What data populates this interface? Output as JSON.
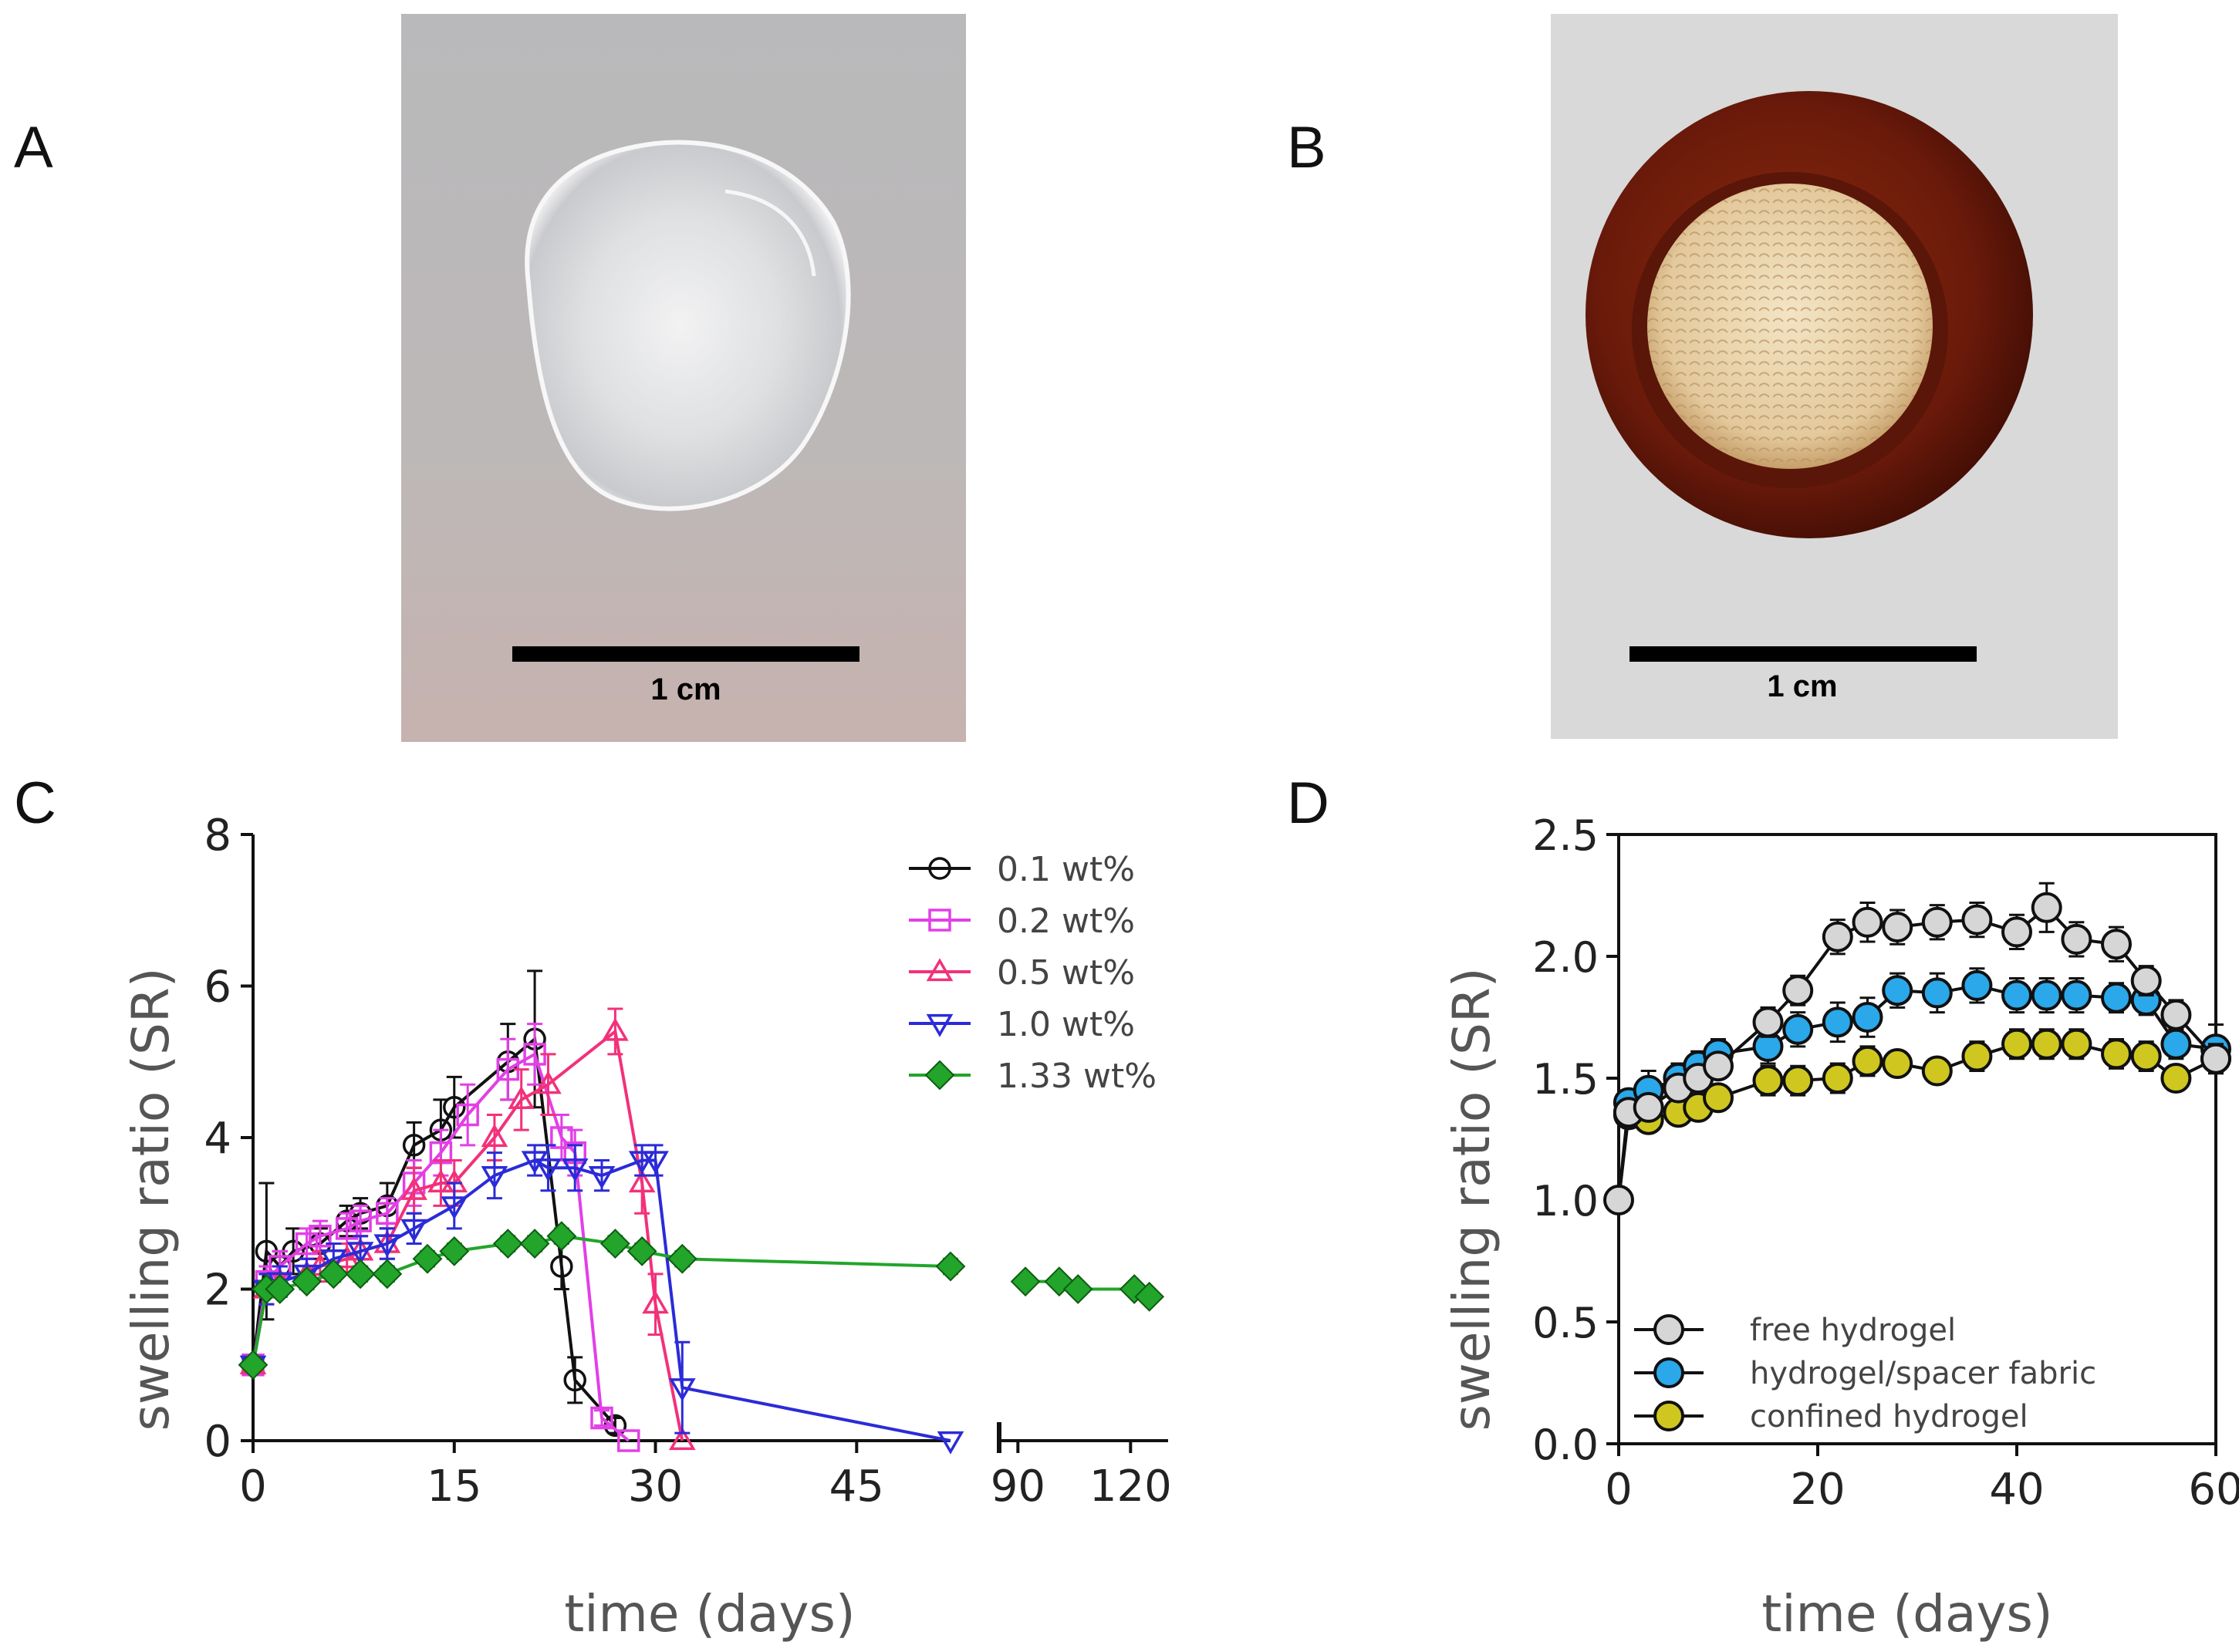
{
  "panels": {
    "a": {
      "letter": "A",
      "scale_label": "1 cm"
    },
    "b": {
      "letter": "B",
      "scale_label": "1 cm"
    },
    "c": {
      "letter": "C"
    },
    "d": {
      "letter": "D"
    }
  },
  "colors": {
    "black": "#111111",
    "magenta": "#e23fe6",
    "pink": "#f2317a",
    "blue": "#2b2bd8",
    "green": "#22a52a",
    "light_gray": "#d6d6d6",
    "sky_blue": "#2aa8ea",
    "olive_yellow": "#cfc71f"
  },
  "chart_data": [
    {
      "id": "C",
      "type": "line",
      "xlabel": "time (days)",
      "ylabel": "swelling ratio (SR)",
      "ylim": [
        0,
        8
      ],
      "yticks": [
        "0",
        "2",
        "4",
        "6",
        "8"
      ],
      "xticks_left": [
        "0",
        "15",
        "30",
        "45"
      ],
      "xticks_right": [
        "90",
        "120"
      ],
      "x_axis_break": true,
      "xlim_left": [
        0,
        52
      ],
      "xlim_right": [
        85,
        130
      ],
      "legend_position": "top-right",
      "series": [
        {
          "name": "0.1 wt%",
          "marker": "circle-open",
          "color": "#111111",
          "x": [
            0,
            1,
            2,
            3,
            5,
            7,
            8,
            10,
            12,
            14,
            15,
            19,
            21,
            23,
            24,
            27
          ],
          "y": [
            1.0,
            2.5,
            2.3,
            2.5,
            2.6,
            2.9,
            3.0,
            3.1,
            3.9,
            4.1,
            4.4,
            5.0,
            5.3,
            2.3,
            0.8,
            0.2
          ],
          "err": [
            0,
            0.9,
            0.2,
            0.3,
            0.2,
            0.2,
            0.2,
            0.3,
            0.3,
            0.4,
            0.4,
            0.5,
            0.9,
            0.3,
            0.3,
            0.1
          ]
        },
        {
          "name": "0.2 wt%",
          "marker": "square-open",
          "color": "#e23fe6",
          "x": [
            0,
            1,
            2,
            4,
            5,
            7,
            8,
            10,
            12,
            14,
            16,
            19,
            21,
            23,
            24,
            26,
            28
          ],
          "y": [
            1.0,
            2.1,
            2.3,
            2.6,
            2.7,
            2.8,
            2.9,
            3.0,
            3.4,
            3.8,
            4.3,
            4.9,
            5.1,
            4.0,
            3.8,
            0.3,
            0.0
          ],
          "err": [
            0,
            0.2,
            0.2,
            0.2,
            0.2,
            0.2,
            0.2,
            0.2,
            0.3,
            0.3,
            0.4,
            0.4,
            0.4,
            0.3,
            0.3,
            0.1,
            0
          ]
        },
        {
          "name": "0.5 wt%",
          "marker": "triangle-up-open",
          "color": "#f2317a",
          "x": [
            0,
            1,
            2,
            4,
            5,
            7,
            8,
            10,
            12,
            14,
            15,
            18,
            20,
            22,
            27,
            29,
            30,
            32
          ],
          "y": [
            1.0,
            2.0,
            2.1,
            2.2,
            2.3,
            2.4,
            2.5,
            2.6,
            3.3,
            3.4,
            3.4,
            4.0,
            4.5,
            4.7,
            5.4,
            3.4,
            1.8,
            0.0
          ],
          "err": [
            0,
            0.2,
            0.2,
            0.2,
            0.2,
            0.2,
            0.2,
            0.2,
            0.3,
            0.3,
            0.3,
            0.3,
            0.4,
            0.4,
            0.3,
            0.4,
            0.4,
            0
          ]
        },
        {
          "name": "1.0 wt%",
          "marker": "triangle-down-open",
          "color": "#2b2bd8",
          "x": [
            0,
            1,
            2,
            4,
            6,
            8,
            10,
            12,
            15,
            18,
            21,
            22,
            24,
            26,
            29,
            30,
            32,
            52
          ],
          "y": [
            1.0,
            2.0,
            2.1,
            2.2,
            2.4,
            2.5,
            2.6,
            2.8,
            3.1,
            3.5,
            3.7,
            3.6,
            3.6,
            3.5,
            3.7,
            3.7,
            0.7,
            0.0
          ],
          "err": [
            0,
            0.2,
            0.2,
            0.2,
            0.2,
            0.2,
            0.2,
            0.2,
            0.3,
            0.3,
            0.2,
            0.3,
            0.3,
            0.2,
            0.2,
            0.2,
            0.6,
            0
          ]
        },
        {
          "name": "1.33 wt%",
          "marker": "diamond-filled",
          "color": "#22a52a",
          "x": [
            0,
            1,
            2,
            4,
            6,
            8,
            10,
            13,
            15,
            19,
            21,
            23,
            27,
            29,
            32,
            52,
            92,
            101,
            106,
            121,
            125
          ],
          "y": [
            1.0,
            2.0,
            2.0,
            2.1,
            2.2,
            2.2,
            2.2,
            2.4,
            2.5,
            2.6,
            2.6,
            2.7,
            2.6,
            2.5,
            2.4,
            2.3,
            2.1,
            2.1,
            2.0,
            2.0,
            1.9
          ],
          "err": [
            0,
            0.1,
            0.1,
            0.1,
            0.1,
            0.1,
            0.1,
            0.1,
            0.1,
            0.1,
            0.1,
            0.1,
            0.1,
            0.1,
            0.1,
            0.1,
            0.05,
            0.05,
            0.05,
            0.05,
            0.05
          ]
        }
      ]
    },
    {
      "id": "D",
      "type": "line",
      "xlabel": "time (days)",
      "ylabel": "swelling ratio (SR)",
      "xlim": [
        0,
        60
      ],
      "ylim": [
        0,
        2.5
      ],
      "xticks": [
        "0",
        "20",
        "40",
        "60"
      ],
      "yticks": [
        "0.0",
        "0.5",
        "1.0",
        "1.5",
        "2.0",
        "2.5"
      ],
      "legend_position": "bottom-left",
      "series": [
        {
          "name": "free hydrogel",
          "marker": "circle-filled",
          "color": "#d6d6d6",
          "x": [
            0,
            1,
            3,
            6,
            8,
            10,
            15,
            18,
            22,
            25,
            28,
            32,
            36,
            40,
            43,
            46,
            50,
            53,
            56,
            60
          ],
          "y": [
            1.0,
            1.36,
            1.38,
            1.46,
            1.5,
            1.55,
            1.73,
            1.86,
            2.08,
            2.14,
            2.12,
            2.14,
            2.15,
            2.1,
            2.2,
            2.07,
            2.05,
            1.9,
            1.76,
            1.58
          ],
          "err": [
            0,
            0.05,
            0.05,
            0.05,
            0.05,
            0.05,
            0.06,
            0.06,
            0.07,
            0.08,
            0.07,
            0.07,
            0.07,
            0.07,
            0.1,
            0.07,
            0.07,
            0.06,
            0.06,
            0.06
          ]
        },
        {
          "name": "hydrogel/spacer fabric",
          "marker": "circle-filled",
          "color": "#2aa8ea",
          "x": [
            1,
            3,
            6,
            8,
            10,
            15,
            18,
            22,
            25,
            28,
            32,
            36,
            40,
            43,
            46,
            50,
            53,
            56,
            60
          ],
          "y": [
            1.4,
            1.45,
            1.5,
            1.55,
            1.6,
            1.63,
            1.7,
            1.73,
            1.75,
            1.86,
            1.85,
            1.88,
            1.84,
            1.84,
            1.84,
            1.83,
            1.82,
            1.64,
            1.62
          ],
          "err": [
            0.05,
            0.08,
            0.06,
            0.06,
            0.06,
            0.07,
            0.07,
            0.08,
            0.08,
            0.07,
            0.08,
            0.07,
            0.07,
            0.07,
            0.07,
            0.06,
            0.06,
            0.06,
            0.1
          ]
        },
        {
          "name": "confined hydrogel",
          "marker": "circle-filled",
          "color": "#cfc71f",
          "x": [
            1,
            3,
            6,
            8,
            10,
            15,
            18,
            22,
            25,
            28,
            32,
            36,
            40,
            43,
            46,
            50,
            53,
            56,
            60
          ],
          "y": [
            1.35,
            1.33,
            1.36,
            1.38,
            1.42,
            1.49,
            1.49,
            1.5,
            1.57,
            1.56,
            1.53,
            1.59,
            1.64,
            1.64,
            1.64,
            1.6,
            1.59,
            1.5,
            1.58
          ],
          "err": [
            0.05,
            0.05,
            0.05,
            0.05,
            0.05,
            0.06,
            0.06,
            0.06,
            0.06,
            0.05,
            0.05,
            0.06,
            0.06,
            0.06,
            0.06,
            0.06,
            0.06,
            0.05,
            0.06
          ]
        }
      ]
    }
  ]
}
